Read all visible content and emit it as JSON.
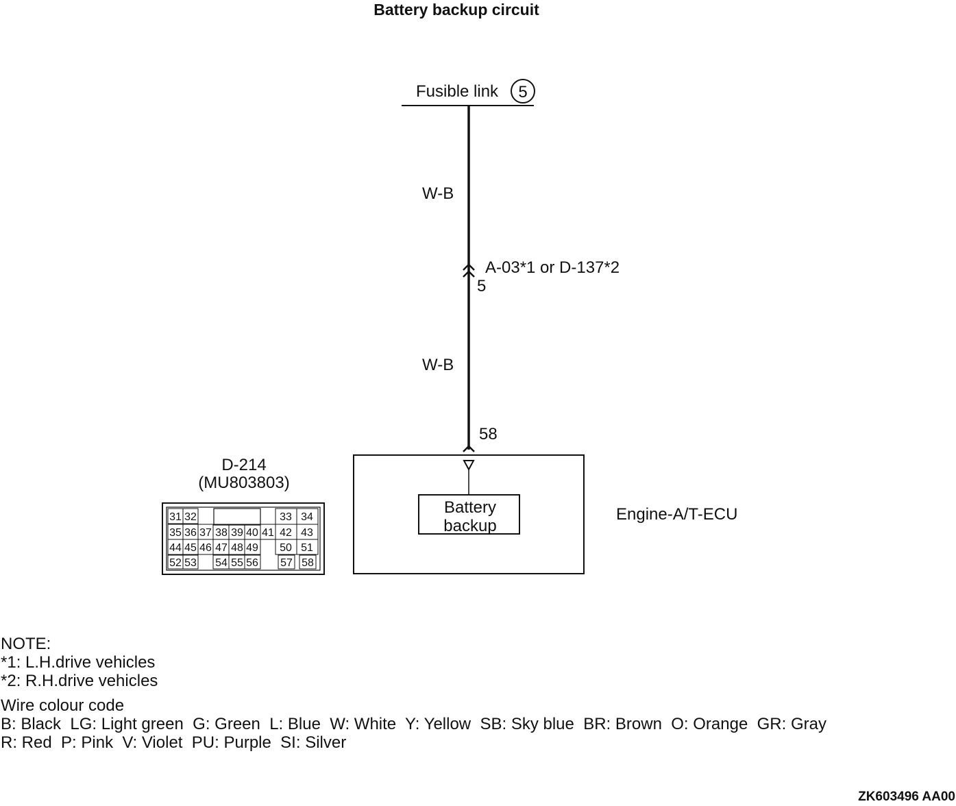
{
  "title": "Battery backup circuit",
  "fusible_link": {
    "label": "Fusible link",
    "number": "5"
  },
  "wire_upper": {
    "colour": "W-B"
  },
  "wire_lower": {
    "colour": "W-B"
  },
  "connector_mid": {
    "label": "A-03*1 or D-137*2",
    "pin": "5"
  },
  "ecu_pin": "58",
  "ecu": {
    "name": "Engine-A/T-ECU",
    "block_line1": "Battery",
    "block_line2": "backup"
  },
  "connector_face": {
    "id": "D-214",
    "part": "(MU803803)",
    "rows": [
      [
        "31",
        "32",
        "33",
        "34"
      ],
      [
        "35",
        "36",
        "37",
        "38",
        "39",
        "40",
        "41",
        "42",
        "43"
      ],
      [
        "44",
        "45",
        "46",
        "47",
        "48",
        "49",
        "50",
        "51"
      ],
      [
        "52",
        "53",
        "54",
        "55",
        "56",
        "57",
        "58"
      ]
    ]
  },
  "notes": {
    "heading": "NOTE:",
    "lines": [
      "*1: L.H.drive vehicles",
      "*2: R.H.drive vehicles"
    ]
  },
  "wire_colour_code": {
    "heading": "Wire colour code",
    "line1": "B: Black  LG: Light green  G: Green  L: Blue  W: White  Y: Yellow  SB: Sky blue  BR: Brown  O: Orange  GR: Gray",
    "line2": "R: Red  P: Pink  V: Violet  PU: Purple  SI: Silver"
  },
  "figure_ref": "ZK603496 AA00"
}
